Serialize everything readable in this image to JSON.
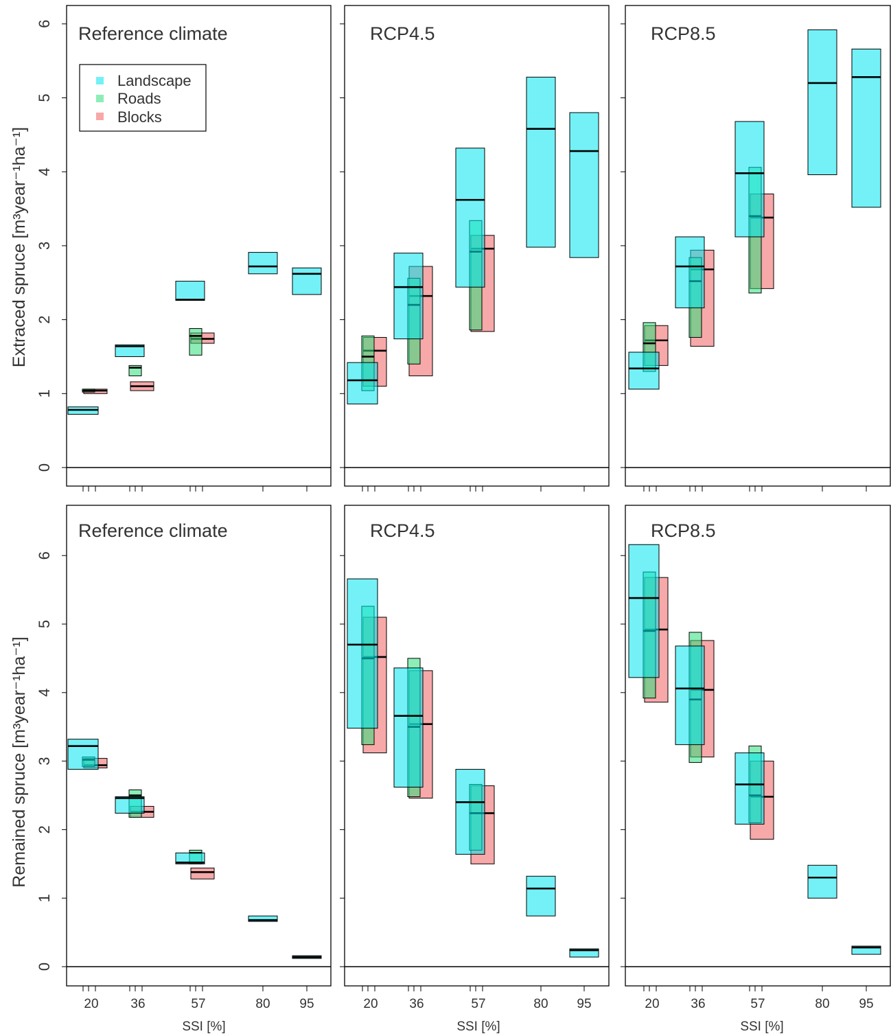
{
  "figure": {
    "x_title": "SSI [%]",
    "x_tick_labels": [
      "20",
      "36",
      "57",
      "80",
      "95"
    ],
    "y_ticks": [
      "0",
      "1",
      "2",
      "3",
      "4",
      "5",
      "6"
    ],
    "row_titles": [
      "Extraced spruce [m³year⁻¹ha⁻¹]",
      "Remained spruce [m³year⁻¹ha⁻¹]"
    ],
    "legend": [
      "Landscape",
      "Roads",
      "Blocks"
    ],
    "colors": {
      "Landscape": "#00e5ee",
      "Roads": "#2ee07a",
      "Blocks": "#f06060"
    }
  },
  "chart_data": [
    {
      "type": "box",
      "title": "Reference climate",
      "ylabel": "Extraced spruce [m³year⁻¹ha⁻¹]",
      "xlabel": "SSI [%]",
      "ylim": [
        0,
        6
      ],
      "legend": [
        "Landscape",
        "Roads",
        "Blocks"
      ],
      "series": [
        {
          "name": "Landscape",
          "boxes": [
            {
              "ssi": 20,
              "low": 0.72,
              "high": 0.82,
              "median": 0.78
            },
            {
              "ssi": 36,
              "low": 1.5,
              "high": 1.66,
              "median": 1.64
            },
            {
              "ssi": 57,
              "low": 2.26,
              "high": 2.52,
              "median": 2.27
            },
            {
              "ssi": 80,
              "low": 2.62,
              "high": 2.91,
              "median": 2.72
            },
            {
              "ssi": 95,
              "low": 2.34,
              "high": 2.7,
              "median": 2.62
            }
          ]
        },
        {
          "name": "Roads",
          "boxes": [
            {
              "ssi": 20,
              "low": 1.02,
              "high": 1.06,
              "median": 1.04
            },
            {
              "ssi": 36,
              "low": 1.24,
              "high": 1.38,
              "median": 1.35
            },
            {
              "ssi": 57,
              "low": 1.52,
              "high": 1.88,
              "median": 1.78
            }
          ]
        },
        {
          "name": "Blocks",
          "boxes": [
            {
              "ssi": 20,
              "low": 1.0,
              "high": 1.06,
              "median": 1.04
            },
            {
              "ssi": 36,
              "low": 1.04,
              "high": 1.16,
              "median": 1.1
            },
            {
              "ssi": 57,
              "low": 1.68,
              "high": 1.82,
              "median": 1.74
            }
          ]
        }
      ]
    },
    {
      "type": "box",
      "title": "RCP4.5",
      "ylabel": "Extraced spruce [m³year⁻¹ha⁻¹]",
      "xlabel": "SSI [%]",
      "ylim": [
        0,
        6
      ],
      "series": [
        {
          "name": "Landscape",
          "boxes": [
            {
              "ssi": 20,
              "low": 0.86,
              "high": 1.42,
              "median": 1.18
            },
            {
              "ssi": 36,
              "low": 1.74,
              "high": 2.9,
              "median": 2.44
            },
            {
              "ssi": 57,
              "low": 2.44,
              "high": 4.32,
              "median": 3.62
            },
            {
              "ssi": 80,
              "low": 2.98,
              "high": 5.28,
              "median": 4.58
            },
            {
              "ssi": 95,
              "low": 2.84,
              "high": 4.8,
              "median": 4.28
            }
          ]
        },
        {
          "name": "Roads",
          "boxes": [
            {
              "ssi": 20,
              "low": 1.04,
              "high": 1.78,
              "median": 1.5
            },
            {
              "ssi": 36,
              "low": 1.4,
              "high": 2.56,
              "median": 2.2
            },
            {
              "ssi": 57,
              "low": 1.86,
              "high": 3.34,
              "median": 2.92
            }
          ]
        },
        {
          "name": "Blocks",
          "boxes": [
            {
              "ssi": 20,
              "low": 1.1,
              "high": 1.76,
              "median": 1.58
            },
            {
              "ssi": 36,
              "low": 1.24,
              "high": 2.72,
              "median": 2.32
            },
            {
              "ssi": 57,
              "low": 1.84,
              "high": 3.14,
              "median": 2.96
            }
          ]
        }
      ]
    },
    {
      "type": "box",
      "title": "RCP8.5",
      "ylabel": "Extraced spruce [m³year⁻¹ha⁻¹]",
      "xlabel": "SSI [%]",
      "ylim": [
        0,
        6
      ],
      "series": [
        {
          "name": "Landscape",
          "boxes": [
            {
              "ssi": 20,
              "low": 1.06,
              "high": 1.56,
              "median": 1.34
            },
            {
              "ssi": 36,
              "low": 2.16,
              "high": 3.12,
              "median": 2.72
            },
            {
              "ssi": 57,
              "low": 3.12,
              "high": 4.68,
              "median": 3.98
            },
            {
              "ssi": 80,
              "low": 3.96,
              "high": 5.92,
              "median": 5.2
            },
            {
              "ssi": 95,
              "low": 3.52,
              "high": 5.66,
              "median": 5.28
            }
          ]
        },
        {
          "name": "Roads",
          "boxes": [
            {
              "ssi": 20,
              "low": 1.3,
              "high": 1.96,
              "median": 1.68
            },
            {
              "ssi": 36,
              "low": 1.76,
              "high": 2.84,
              "median": 2.52
            },
            {
              "ssi": 57,
              "low": 2.36,
              "high": 4.06,
              "median": 3.4
            }
          ]
        },
        {
          "name": "Blocks",
          "boxes": [
            {
              "ssi": 20,
              "low": 1.38,
              "high": 1.92,
              "median": 1.72
            },
            {
              "ssi": 36,
              "low": 1.64,
              "high": 2.94,
              "median": 2.68
            },
            {
              "ssi": 57,
              "low": 2.42,
              "high": 3.7,
              "median": 3.38
            }
          ]
        }
      ]
    },
    {
      "type": "box",
      "title": "Reference climate",
      "ylabel": "Remained spruce [m³year⁻¹ha⁻¹]",
      "xlabel": "SSI [%]",
      "ylim": [
        0,
        6
      ],
      "series": [
        {
          "name": "Landscape",
          "boxes": [
            {
              "ssi": 20,
              "low": 2.88,
              "high": 3.32,
              "median": 3.22
            },
            {
              "ssi": 36,
              "low": 2.24,
              "high": 2.48,
              "median": 2.46
            },
            {
              "ssi": 57,
              "low": 1.5,
              "high": 1.66,
              "median": 1.52
            },
            {
              "ssi": 80,
              "low": 0.66,
              "high": 0.74,
              "median": 0.68
            },
            {
              "ssi": 95,
              "low": 0.12,
              "high": 0.16,
              "median": 0.14
            }
          ]
        },
        {
          "name": "Roads",
          "boxes": [
            {
              "ssi": 20,
              "low": 2.92,
              "high": 3.06,
              "median": 3.02
            },
            {
              "ssi": 36,
              "low": 2.18,
              "high": 2.58,
              "median": 2.5
            },
            {
              "ssi": 57,
              "low": 1.5,
              "high": 1.7,
              "median": 1.66
            }
          ]
        },
        {
          "name": "Blocks",
          "boxes": [
            {
              "ssi": 20,
              "low": 2.9,
              "high": 3.04,
              "median": 2.94
            },
            {
              "ssi": 36,
              "low": 2.18,
              "high": 2.34,
              "median": 2.26
            },
            {
              "ssi": 57,
              "low": 1.28,
              "high": 1.44,
              "median": 1.38
            }
          ]
        }
      ]
    },
    {
      "type": "box",
      "title": "RCP4.5",
      "ylabel": "Remained spruce [m³year⁻¹ha⁻¹]",
      "xlabel": "SSI [%]",
      "ylim": [
        0,
        6
      ],
      "series": [
        {
          "name": "Landscape",
          "boxes": [
            {
              "ssi": 20,
              "low": 3.48,
              "high": 5.66,
              "median": 4.7
            },
            {
              "ssi": 36,
              "low": 2.62,
              "high": 4.36,
              "median": 3.66
            },
            {
              "ssi": 57,
              "low": 1.64,
              "high": 2.88,
              "median": 2.4
            },
            {
              "ssi": 80,
              "low": 0.74,
              "high": 1.32,
              "median": 1.14
            },
            {
              "ssi": 95,
              "low": 0.14,
              "high": 0.26,
              "median": 0.24
            }
          ]
        },
        {
          "name": "Roads",
          "boxes": [
            {
              "ssi": 20,
              "low": 3.24,
              "high": 5.26,
              "median": 4.5
            },
            {
              "ssi": 36,
              "low": 2.48,
              "high": 4.5,
              "median": 3.5
            },
            {
              "ssi": 57,
              "low": 1.7,
              "high": 2.66,
              "median": 2.24
            }
          ]
        },
        {
          "name": "Blocks",
          "boxes": [
            {
              "ssi": 20,
              "low": 3.12,
              "high": 5.1,
              "median": 4.52
            },
            {
              "ssi": 36,
              "low": 2.46,
              "high": 4.32,
              "median": 3.54
            },
            {
              "ssi": 57,
              "low": 1.5,
              "high": 2.64,
              "median": 2.24
            }
          ]
        }
      ]
    },
    {
      "type": "box",
      "title": "RCP8.5",
      "ylabel": "Remained spruce [m³year⁻¹ha⁻¹]",
      "xlabel": "SSI [%]",
      "ylim": [
        0,
        6
      ],
      "series": [
        {
          "name": "Landscape",
          "boxes": [
            {
              "ssi": 20,
              "low": 4.22,
              "high": 6.16,
              "median": 5.38
            },
            {
              "ssi": 36,
              "low": 3.24,
              "high": 4.68,
              "median": 4.06
            },
            {
              "ssi": 57,
              "low": 2.08,
              "high": 3.12,
              "median": 2.66
            },
            {
              "ssi": 80,
              "low": 1.0,
              "high": 1.48,
              "median": 1.3
            },
            {
              "ssi": 95,
              "low": 0.18,
              "high": 0.3,
              "median": 0.28
            }
          ]
        },
        {
          "name": "Roads",
          "boxes": [
            {
              "ssi": 20,
              "low": 3.92,
              "high": 5.76,
              "median": 4.9
            },
            {
              "ssi": 36,
              "low": 2.98,
              "high": 4.88,
              "median": 3.9
            },
            {
              "ssi": 57,
              "low": 2.1,
              "high": 3.22,
              "median": 2.5
            }
          ]
        },
        {
          "name": "Blocks",
          "boxes": [
            {
              "ssi": 20,
              "low": 3.86,
              "high": 5.68,
              "median": 4.92
            },
            {
              "ssi": 36,
              "low": 3.06,
              "high": 4.76,
              "median": 4.04
            },
            {
              "ssi": 57,
              "low": 1.86,
              "high": 3.0,
              "median": 2.48
            }
          ]
        }
      ]
    }
  ]
}
